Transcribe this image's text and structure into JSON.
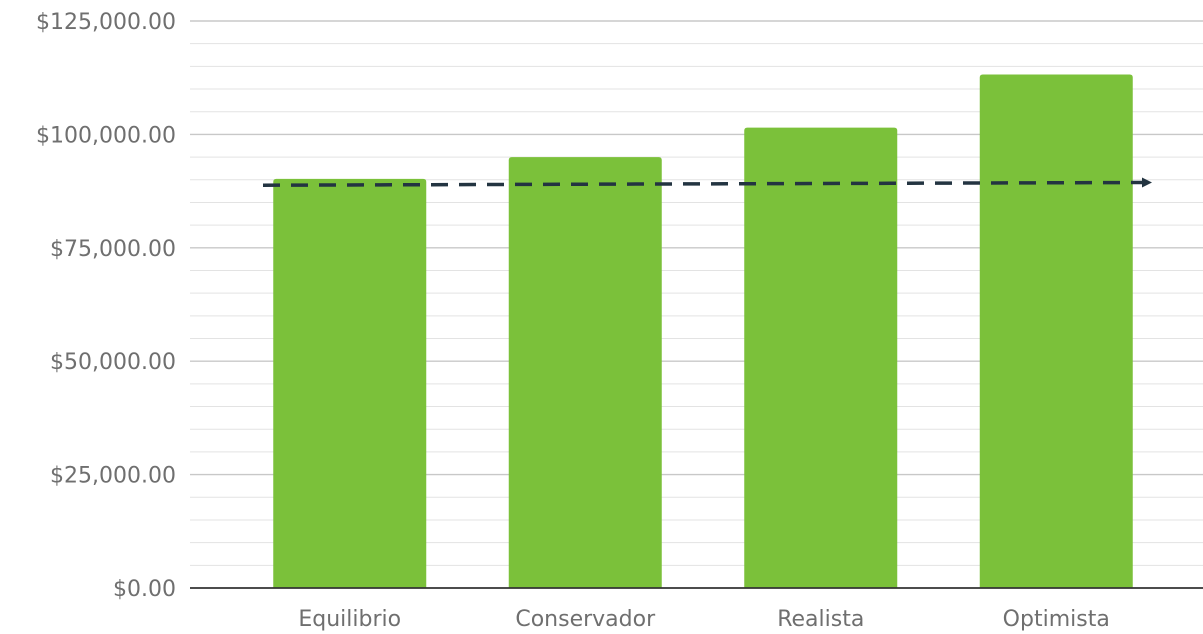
{
  "chart_data": {
    "type": "bar",
    "categories": [
      "Equilibrio",
      "Conservador",
      "Realista",
      "Optimista"
    ],
    "values": [
      90200,
      95000,
      101500,
      113200
    ],
    "ylim": [
      0,
      125000
    ],
    "yticks": [
      0,
      25000,
      50000,
      75000,
      100000,
      125000
    ],
    "ytick_labels": [
      "$0.00",
      "$25,000.00",
      "$50,000.00",
      "$75,000.00",
      "$100,000.00",
      "$125,000.00"
    ],
    "minor_grid_step": 5000,
    "grid": true,
    "title": "",
    "xlabel": "",
    "ylabel": "",
    "bar_color": "#7bc13a",
    "trend_line": {
      "style": "dashed-arrow",
      "color": "#233441",
      "start_value": 88800,
      "end_value": 89400
    }
  }
}
